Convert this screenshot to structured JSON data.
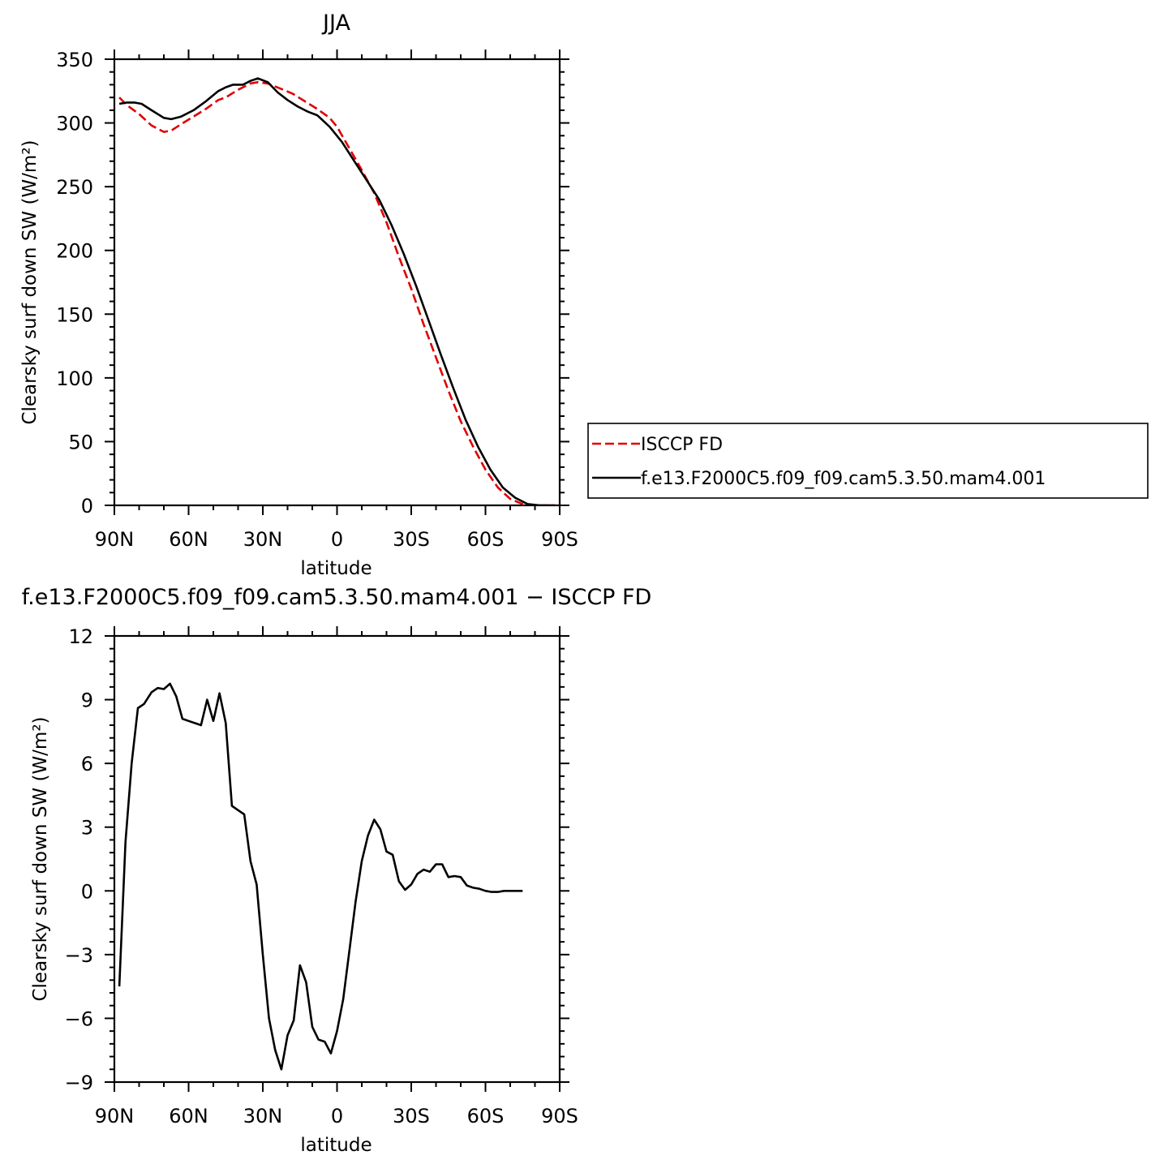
{
  "chart_data": [
    {
      "type": "line",
      "title": "JJA",
      "xlabel": "latitude",
      "ylabel": "Clearsky surf down SW (W/m²)",
      "xlim": [
        90,
        -90
      ],
      "ylim": [
        0,
        350
      ],
      "xticks": [
        {
          "value": 90,
          "label": "90N"
        },
        {
          "value": 60,
          "label": "60N"
        },
        {
          "value": 30,
          "label": "30N"
        },
        {
          "value": 0,
          "label": "0"
        },
        {
          "value": -30,
          "label": "30S"
        },
        {
          "value": -60,
          "label": "60S"
        },
        {
          "value": -90,
          "label": "90S"
        }
      ],
      "yticks": [
        {
          "value": 0,
          "label": "0"
        },
        {
          "value": 50,
          "label": "50"
        },
        {
          "value": 100,
          "label": "100"
        },
        {
          "value": 150,
          "label": "150"
        },
        {
          "value": 200,
          "label": "200"
        },
        {
          "value": 250,
          "label": "250"
        },
        {
          "value": 300,
          "label": "300"
        },
        {
          "value": 350,
          "label": "350"
        }
      ],
      "legend": "right",
      "series": [
        {
          "name": "ISCCP FD",
          "color": "#e00000",
          "dash": true,
          "points": [
            [
              88,
              320
            ],
            [
              85,
              314
            ],
            [
              80,
              307
            ],
            [
              75,
              298
            ],
            [
              70,
              293
            ],
            [
              67,
              294
            ],
            [
              63,
              299
            ],
            [
              58,
              305
            ],
            [
              53,
              311
            ],
            [
              48,
              318
            ],
            [
              45,
              320
            ],
            [
              40,
              326
            ],
            [
              35,
              331
            ],
            [
              32,
              332
            ],
            [
              28,
              331
            ],
            [
              23,
              327
            ],
            [
              18,
              323
            ],
            [
              13,
              317
            ],
            [
              8,
              311
            ],
            [
              3,
              304
            ],
            [
              0,
              297
            ],
            [
              -5,
              280
            ],
            [
              -10,
              263
            ],
            [
              -15,
              245
            ],
            [
              -20,
              222
            ],
            [
              -25,
              195
            ],
            [
              -30,
              170
            ],
            [
              -35,
              142
            ],
            [
              -40,
              116
            ],
            [
              -45,
              90
            ],
            [
              -50,
              66
            ],
            [
              -55,
              46
            ],
            [
              -60,
              28
            ],
            [
              -65,
              14
            ],
            [
              -70,
              5
            ],
            [
              -75,
              1
            ],
            [
              -80,
              0
            ],
            [
              -85,
              0
            ],
            [
              -88,
              0
            ]
          ]
        },
        {
          "name": "f.e13.F2000C5.f09_f09.cam5.3.50.mam4.001",
          "color": "#000000",
          "dash": false,
          "points": [
            [
              88,
              315
            ],
            [
              85,
              316
            ],
            [
              82,
              316
            ],
            [
              79,
              315
            ],
            [
              75,
              310
            ],
            [
              70,
              304
            ],
            [
              67,
              303
            ],
            [
              63,
              305
            ],
            [
              58,
              310
            ],
            [
              53,
              317
            ],
            [
              48,
              325
            ],
            [
              45,
              328
            ],
            [
              42,
              330
            ],
            [
              38,
              330
            ],
            [
              35,
              333
            ],
            [
              32,
              335
            ],
            [
              28,
              332
            ],
            [
              24,
              324
            ],
            [
              20,
              318
            ],
            [
              16,
              313
            ],
            [
              12,
              309
            ],
            [
              8,
              306
            ],
            [
              3,
              297
            ],
            [
              -2,
              285
            ],
            [
              -7,
              270
            ],
            [
              -12,
              255
            ],
            [
              -17,
              240
            ],
            [
              -22,
              220
            ],
            [
              -27,
              197
            ],
            [
              -32,
              172
            ],
            [
              -37,
              145
            ],
            [
              -42,
              118
            ],
            [
              -47,
              92
            ],
            [
              -52,
              67
            ],
            [
              -57,
              46
            ],
            [
              -62,
              28
            ],
            [
              -67,
              14
            ],
            [
              -72,
              6
            ],
            [
              -77,
              1
            ],
            [
              -82,
              0
            ],
            [
              -88,
              0
            ]
          ]
        }
      ]
    },
    {
      "type": "line",
      "title": "f.e13.F2000C5.f09_f09.cam5.3.50.mam4.001 − ISCCP FD",
      "xlabel": "latitude",
      "ylabel": "Clearsky surf down SW (W/m²)",
      "xlim": [
        90,
        -90
      ],
      "ylim": [
        -9,
        12
      ],
      "xticks": [
        {
          "value": 90,
          "label": "90N"
        },
        {
          "value": 60,
          "label": "60N"
        },
        {
          "value": 30,
          "label": "30N"
        },
        {
          "value": 0,
          "label": "0"
        },
        {
          "value": -30,
          "label": "30S"
        },
        {
          "value": -60,
          "label": "60S"
        },
        {
          "value": -90,
          "label": "90S"
        }
      ],
      "yticks": [
        {
          "value": -9,
          "label": "−9"
        },
        {
          "value": -6,
          "label": "−6"
        },
        {
          "value": -3,
          "label": "−3"
        },
        {
          "value": 0,
          "label": "0"
        },
        {
          "value": 3,
          "label": "3"
        },
        {
          "value": 6,
          "label": "6"
        },
        {
          "value": 9,
          "label": "9"
        },
        {
          "value": 12,
          "label": "12"
        }
      ],
      "series": [
        {
          "name": "",
          "color": "#000000",
          "dash": false,
          "points": [
            [
              88,
              -4.5
            ],
            [
              85.5,
              2.3
            ],
            [
              83,
              6
            ],
            [
              80.5,
              8.6
            ],
            [
              78,
              8.8
            ],
            [
              75,
              9.35
            ],
            [
              72.5,
              9.55
            ],
            [
              70,
              9.5
            ],
            [
              67.5,
              9.75
            ],
            [
              65,
              9.15
            ],
            [
              62.5,
              8.1
            ],
            [
              60,
              8
            ],
            [
              57.5,
              7.9
            ],
            [
              55,
              7.8
            ],
            [
              52.5,
              9
            ],
            [
              50,
              8
            ],
            [
              47.5,
              9.3
            ],
            [
              45,
              7.9
            ],
            [
              42.5,
              4
            ],
            [
              40,
              3.8
            ],
            [
              37.5,
              3.6
            ],
            [
              35,
              1.4
            ],
            [
              32.5,
              0.3
            ],
            [
              30,
              -3
            ],
            [
              27.5,
              -6
            ],
            [
              25,
              -7.5
            ],
            [
              22.5,
              -8.4
            ],
            [
              20,
              -6.8
            ],
            [
              17.5,
              -6.1
            ],
            [
              15,
              -3.5
            ],
            [
              12.5,
              -4.3
            ],
            [
              10,
              -6.4
            ],
            [
              7.5,
              -7
            ],
            [
              5,
              -7.1
            ],
            [
              2.5,
              -7.65
            ],
            [
              0,
              -6.6
            ],
            [
              -2.5,
              -5.1
            ],
            [
              -5,
              -2.8
            ],
            [
              -7.5,
              -0.5
            ],
            [
              -10,
              1.4
            ],
            [
              -12.5,
              2.6
            ],
            [
              -15,
              3.35
            ],
            [
              -17.5,
              2.9
            ],
            [
              -20,
              1.85
            ],
            [
              -22.5,
              1.7
            ],
            [
              -25,
              0.45
            ],
            [
              -27.5,
              0.05
            ],
            [
              -30,
              0.3
            ],
            [
              -32.5,
              0.8
            ],
            [
              -35,
              1
            ],
            [
              -37.5,
              0.9
            ],
            [
              -40,
              1.25
            ],
            [
              -42.5,
              1.25
            ],
            [
              -45,
              0.65
            ],
            [
              -47.5,
              0.7
            ],
            [
              -50,
              0.65
            ],
            [
              -52.5,
              0.25
            ],
            [
              -55,
              0.15
            ],
            [
              -57.5,
              0.1
            ],
            [
              -60,
              0
            ],
            [
              -62.5,
              -0.05
            ],
            [
              -65,
              -0.05
            ],
            [
              -67.5,
              0
            ],
            [
              -70,
              0
            ],
            [
              -72.5,
              0
            ],
            [
              -75,
              0
            ]
          ]
        }
      ]
    }
  ]
}
